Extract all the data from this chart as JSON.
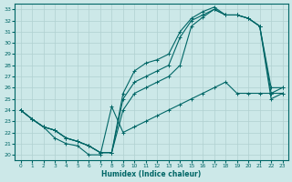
{
  "xlabel": "Humidex (Indice chaleur)",
  "bg_color": "#cce8e8",
  "grid_color": "#b0d0d0",
  "line_color": "#006666",
  "xlim": [
    -0.5,
    23.5
  ],
  "ylim": [
    19.5,
    33.5
  ],
  "xticks": [
    0,
    1,
    2,
    3,
    4,
    5,
    6,
    7,
    8,
    9,
    10,
    11,
    12,
    13,
    14,
    15,
    16,
    17,
    18,
    19,
    20,
    21,
    22,
    23
  ],
  "yticks": [
    20,
    21,
    22,
    23,
    24,
    25,
    26,
    27,
    28,
    29,
    30,
    31,
    32,
    33
  ],
  "line1_x": [
    0,
    1,
    2,
    3,
    4,
    5,
    6,
    7,
    8,
    9,
    10,
    11,
    12,
    13,
    14,
    15,
    16,
    17,
    18,
    19,
    20,
    21,
    22,
    23
  ],
  "line1_y": [
    24.0,
    23.2,
    22.5,
    22.2,
    21.5,
    21.2,
    20.8,
    20.2,
    20.2,
    25.0,
    26.5,
    27.0,
    27.5,
    28.0,
    30.5,
    32.0,
    32.5,
    33.0,
    32.5,
    32.5,
    32.2,
    31.5,
    25.5,
    26.0
  ],
  "line2_x": [
    0,
    1,
    2,
    3,
    4,
    5,
    6,
    7,
    8,
    9,
    10,
    11,
    12,
    13,
    14,
    15,
    16,
    17,
    18,
    19,
    20,
    21,
    22,
    23
  ],
  "line2_y": [
    24.0,
    23.2,
    22.5,
    22.2,
    21.5,
    21.2,
    20.8,
    20.2,
    20.2,
    25.5,
    27.5,
    28.2,
    28.5,
    29.0,
    31.0,
    32.2,
    32.8,
    33.2,
    32.5,
    32.5,
    32.2,
    31.5,
    26.0,
    26.0
  ],
  "line3_x": [
    0,
    1,
    2,
    3,
    4,
    5,
    6,
    7,
    8,
    9,
    10,
    11,
    12,
    13,
    14,
    15,
    16,
    17,
    18,
    19,
    20,
    21,
    22,
    23
  ],
  "line3_y": [
    24.0,
    23.2,
    22.5,
    22.2,
    21.5,
    21.2,
    20.8,
    20.2,
    20.2,
    24.0,
    25.5,
    26.0,
    26.5,
    27.0,
    28.0,
    31.5,
    32.3,
    33.0,
    32.5,
    32.5,
    32.2,
    31.5,
    25.0,
    25.5
  ],
  "line_flat_x": [
    0,
    1,
    2,
    3,
    4,
    5,
    6,
    7,
    8,
    9,
    10,
    11,
    12,
    13,
    14,
    15,
    16,
    17,
    18,
    19,
    20,
    21,
    22,
    23
  ],
  "line_flat_y": [
    24.0,
    23.2,
    22.5,
    21.5,
    21.0,
    20.8,
    20.0,
    20.0,
    24.3,
    22.0,
    22.5,
    23.0,
    23.5,
    24.0,
    24.5,
    25.0,
    25.5,
    26.0,
    26.5,
    25.5,
    25.5,
    25.5,
    25.5,
    25.5
  ],
  "marker": "+",
  "markersize": 3,
  "linewidth": 0.8
}
